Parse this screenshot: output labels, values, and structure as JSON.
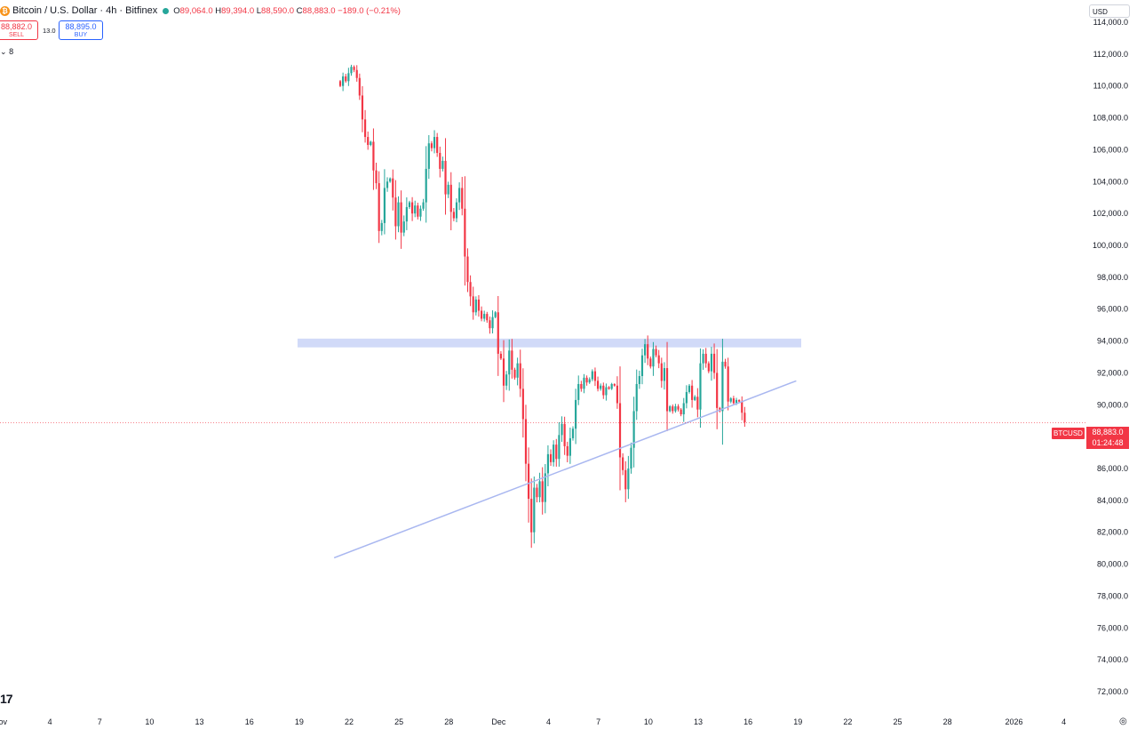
{
  "header": {
    "title": "Bitcoin / U.S. Dollar · 4h · Bitfinex",
    "ohlc": {
      "open_key": "O",
      "open": "89,064.0",
      "high_key": "H",
      "high": "89,394.0",
      "low_key": "L",
      "low": "88,590.0",
      "close_key": "C",
      "close": "88,883.0",
      "change": "−189.0 (−0.21%)"
    }
  },
  "trade": {
    "sell_price": "88,882.0",
    "sell_label": "SELL",
    "spread": "13.0",
    "buy_price": "88,895.0",
    "buy_label": "BUY"
  },
  "indicator_text": "8",
  "currency": "USD",
  "current_price": {
    "ticker": "BTCUSD",
    "price": "88,883.0",
    "countdown": "01:24:48",
    "value": 88883
  },
  "colors": {
    "up": "#26a69a",
    "down": "#f23645",
    "zone": "#c9d4f7",
    "trendline": "#a9b7f0",
    "price_line": "#f23645"
  },
  "icons": {
    "logo": "tradingview-logo-icon",
    "settings": "gear-icon"
  },
  "chart_data": {
    "type": "candlestick",
    "interval": "4h",
    "y_range": [
      71500,
      114500
    ],
    "y_ticks": [
      114000,
      112000,
      110000,
      108000,
      106000,
      104000,
      102000,
      100000,
      98000,
      96000,
      94000,
      92000,
      90000,
      88000,
      86000,
      84000,
      82000,
      80000,
      78000,
      76000,
      74000,
      72000
    ],
    "y_tick_labels": [
      "114,000.0",
      "112,000.0",
      "110,000.0",
      "108,000.0",
      "106,000.0",
      "104,000.0",
      "102,000.0",
      "100,000.0",
      "98,000.0",
      "96,000.0",
      "94,000.0",
      "92,000.0",
      "90,000.0",
      "88,000.0",
      "86,000.0",
      "84,000.0",
      "82,000.0",
      "80,000.0",
      "78,000.0",
      "76,000.0",
      "74,000.0",
      "72,000.0"
    ],
    "x_ticks": [
      "Nov",
      "4",
      "7",
      "10",
      "13",
      "16",
      "19",
      "22",
      "25",
      "28",
      "Dec",
      "4",
      "7",
      "10",
      "13",
      "16",
      "19",
      "22",
      "25",
      "28",
      "2026",
      "4"
    ],
    "x_tick_days": [
      0,
      3,
      6,
      9,
      12,
      15,
      18,
      21,
      24,
      27,
      30,
      33,
      36,
      39,
      42,
      45,
      48,
      51,
      54,
      57,
      61,
      64
    ],
    "x_range_days": [
      0,
      65.3
    ],
    "last_candle_day": 44.8,
    "closes": [
      110000,
      110600,
      110300,
      110800,
      111200,
      111000,
      110500,
      109400,
      107900,
      106800,
      106300,
      106500,
      104700,
      103900,
      100900,
      101400,
      103600,
      104000,
      104200,
      103000,
      101200,
      102700,
      100800,
      101500,
      102400,
      102700,
      102000,
      102500,
      101800,
      102300,
      102700,
      104800,
      106400,
      106100,
      106800,
      105800,
      104800,
      105300,
      103200,
      103800,
      102100,
      101700,
      102700,
      103600,
      102300,
      99300,
      97700,
      96800,
      95800,
      96600,
      95900,
      95400,
      95700,
      95300,
      94800,
      95500,
      95800,
      93200,
      92900,
      91200,
      91900,
      93400,
      92200,
      91700,
      92600,
      91000,
      89100,
      86300,
      84100,
      82000,
      84800,
      84200,
      85200,
      83900,
      85700,
      86900,
      86400,
      87500,
      86600,
      88100,
      88800,
      87400,
      86800,
      87900,
      88500,
      90300,
      91300,
      91000,
      91700,
      91400,
      91600,
      92100,
      91500,
      91000,
      91200,
      90600,
      91100,
      91000,
      91300,
      91200,
      90100,
      86700,
      85900,
      84700,
      86000,
      87300,
      89600,
      91300,
      91800,
      93100,
      93800,
      92900,
      92400,
      93500,
      93100,
      92600,
      91500,
      92300,
      89600,
      89900,
      89600,
      89900,
      89700,
      89400,
      90100,
      90800,
      91200,
      90300,
      90500,
      89700,
      92600,
      93200,
      92600,
      92100,
      93200,
      92000,
      89800,
      89600,
      92700,
      92400,
      90200,
      90400,
      90100,
      90300,
      90200,
      89500,
      88900
    ],
    "horizontal_zone": {
      "low": 93600,
      "high": 94150,
      "from_day": 17.9,
      "to_day": 48.2
    },
    "trendline": {
      "from": [
        20.1,
        80400
      ],
      "to": [
        47.9,
        91500
      ]
    },
    "current_price_line": 88883
  }
}
